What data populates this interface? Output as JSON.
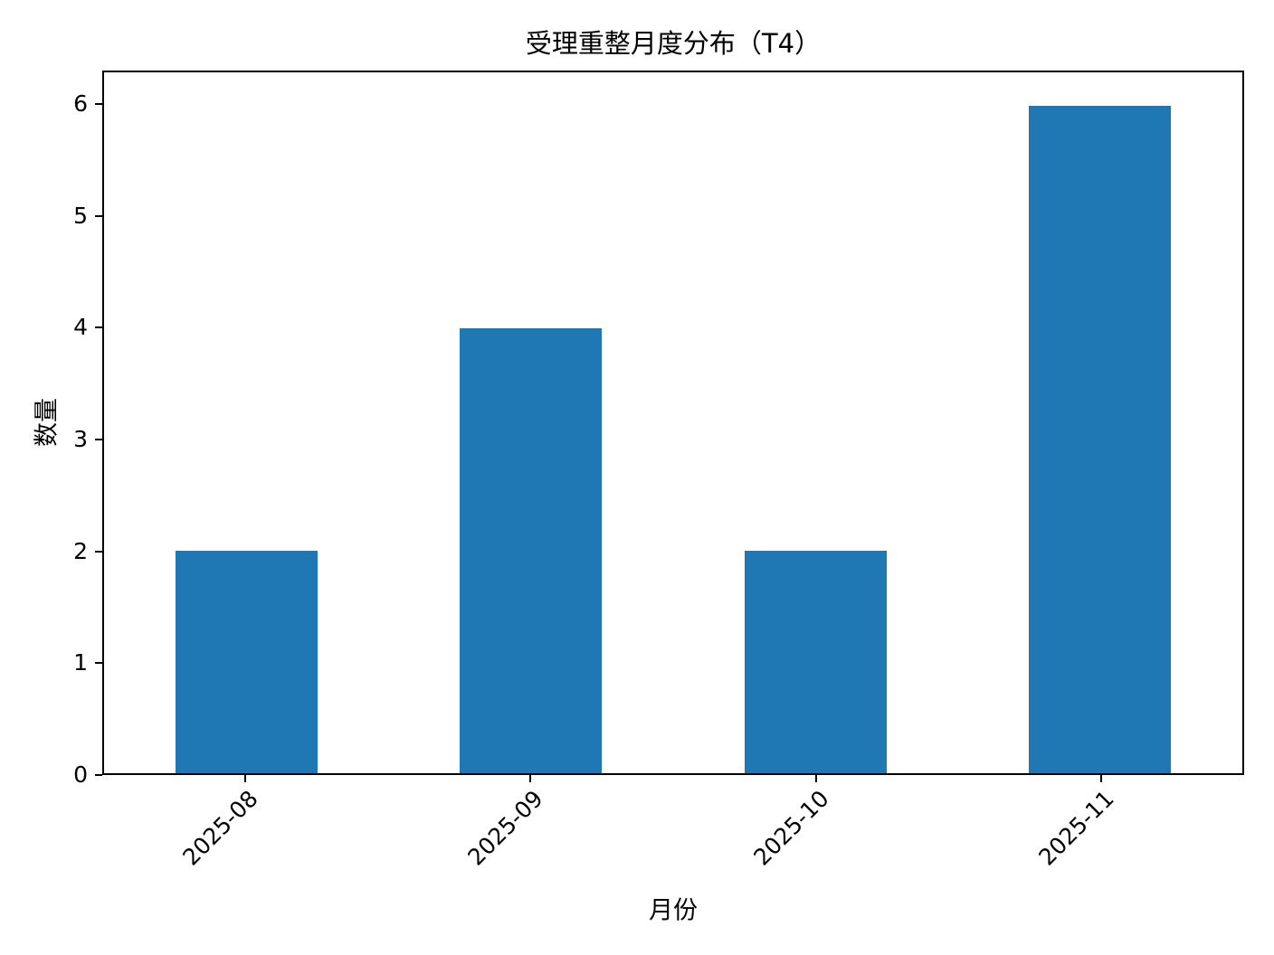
{
  "chart_data": {
    "type": "bar",
    "title": "受理重整月度分布（T4）",
    "categories": [
      "2025-08",
      "2025-09",
      "2025-10",
      "2025-11"
    ],
    "values": [
      2,
      4,
      2,
      6
    ],
    "xlabel": "月份",
    "ylabel": "数量",
    "ylim": [
      0,
      6.3
    ],
    "yticks": [
      0,
      1,
      2,
      3,
      4,
      5,
      6
    ],
    "x_tick_rotation": 45,
    "bar_color": "#1f77b4",
    "axis_color": "#000000",
    "background_color": "#ffffff",
    "grid": false,
    "legend": null,
    "bar_width_category_fraction": 0.5
  }
}
